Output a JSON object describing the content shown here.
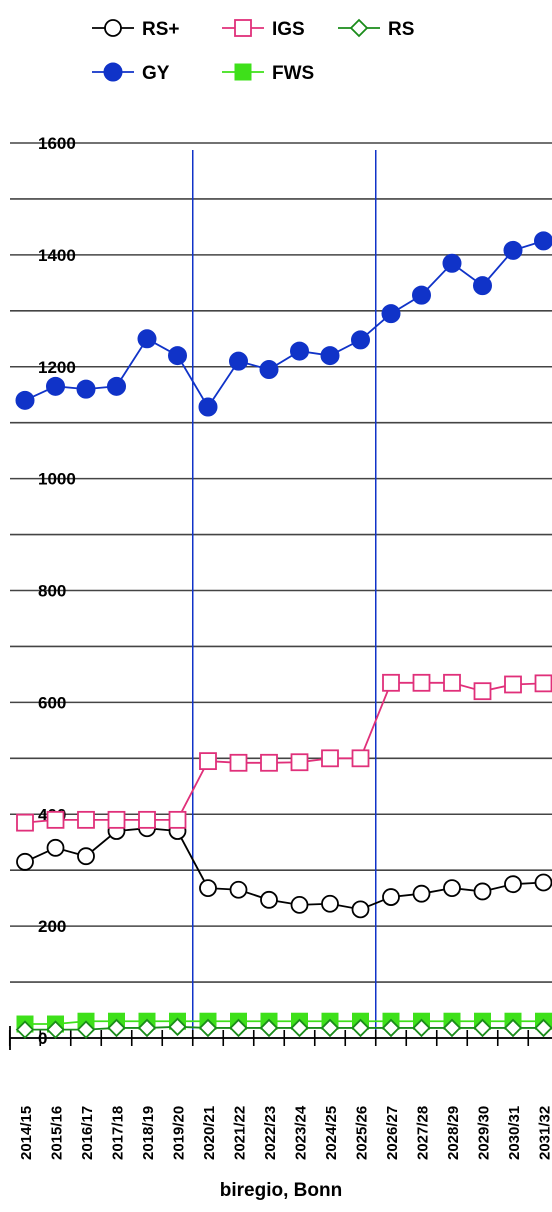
{
  "chart_data": {
    "type": "line",
    "caption": "biregio, Bonn",
    "categories": [
      "2014/15",
      "2015/16",
      "2016/17",
      "2017/18",
      "2018/19",
      "2019/20",
      "2020/21",
      "2021/22",
      "2022/23",
      "2023/24",
      "2024/25",
      "2025/26",
      "2026/27",
      "2027/28",
      "2028/29",
      "2029/30",
      "2030/31",
      "2031/32"
    ],
    "y_ticks": [
      0,
      200,
      400,
      600,
      800,
      1000,
      1200,
      1400,
      1600
    ],
    "ylim": [
      0,
      1600
    ],
    "grid": true,
    "legend_position": "top",
    "vertical_markers": [
      "2020/21",
      "2026/27"
    ],
    "series": [
      {
        "name": "RS+",
        "color": "#000000",
        "marker": "open-circle",
        "values": [
          315,
          340,
          325,
          370,
          375,
          370,
          268,
          265,
          247,
          238,
          240,
          230,
          252,
          258,
          268,
          262,
          275,
          278
        ]
      },
      {
        "name": "IGS",
        "color": "#e0307a",
        "marker": "open-square",
        "values": [
          385,
          390,
          390,
          390,
          390,
          390,
          495,
          492,
          492,
          493,
          500,
          500,
          635,
          635,
          635,
          620,
          632,
          634
        ]
      },
      {
        "name": "RS",
        "color": "#1a8c1a",
        "marker": "open-diamond",
        "values": [
          15,
          15,
          15,
          18,
          18,
          20,
          18,
          18,
          18,
          18,
          18,
          18,
          18,
          18,
          18,
          18,
          18,
          18
        ]
      },
      {
        "name": "GY",
        "color": "#1033c8",
        "marker": "filled-circle",
        "values": [
          1140,
          1165,
          1160,
          1165,
          1250,
          1220,
          1128,
          1210,
          1195,
          1228,
          1220,
          1248,
          1295,
          1328,
          1385,
          1345,
          1408,
          1425
        ]
      },
      {
        "name": "FWS",
        "color": "#3ee01a",
        "marker": "filled-square",
        "values": [
          25,
          25,
          30,
          30,
          30,
          30,
          30,
          30,
          30,
          30,
          30,
          30,
          30,
          30,
          30,
          30,
          30,
          30
        ]
      }
    ]
  }
}
